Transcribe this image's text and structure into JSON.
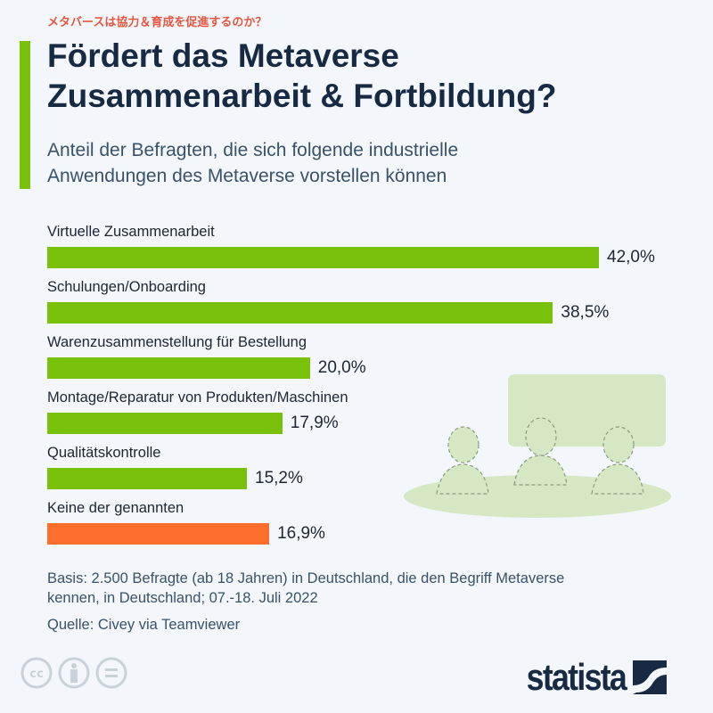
{
  "kicker": "メタバースは協力＆育成を促進するのか？",
  "title_line1": "Fördert das Metaverse",
  "title_line2": "Zusammenarbeit & Fortbildung?",
  "subtitle_line1": "Anteil der Befragten, die sich folgende industrielle",
  "subtitle_line2": "Anwendungen des Metaverse vorstellen können",
  "chart_data": {
    "type": "bar",
    "orientation": "horizontal",
    "categories": [
      "Virtuelle Zusammenarbeit",
      "Schulungen/Onboarding",
      "Warenzusammenstellung für Bestellung",
      "Montage/Reparatur von Produkten/Maschinen",
      "Qualitätskontrolle",
      "Keine der genannten"
    ],
    "values": [
      42.0,
      38.5,
      20.0,
      17.9,
      15.2,
      16.9
    ],
    "value_labels": [
      "42,0%",
      "38,5%",
      "20,0%",
      "17,9%",
      "15,2%",
      "16,9%"
    ],
    "colors": [
      "#7ac10c",
      "#7ac10c",
      "#7ac10c",
      "#7ac10c",
      "#7ac10c",
      "#fb6e2c"
    ],
    "unit": "%"
  },
  "footer": {
    "basis_line1": "Basis: 2.500 Befragte (ab 18 Jahren) in Deutschland, die den Begriff Metaverse",
    "basis_line2": "kennen, in Deutschland; 07.-18. Juli 2022",
    "source": "Quelle: Civey via Teamviewer"
  },
  "license_icons": [
    "cc-icon",
    "by-icon",
    "nd-icon"
  ],
  "logo": "statista"
}
